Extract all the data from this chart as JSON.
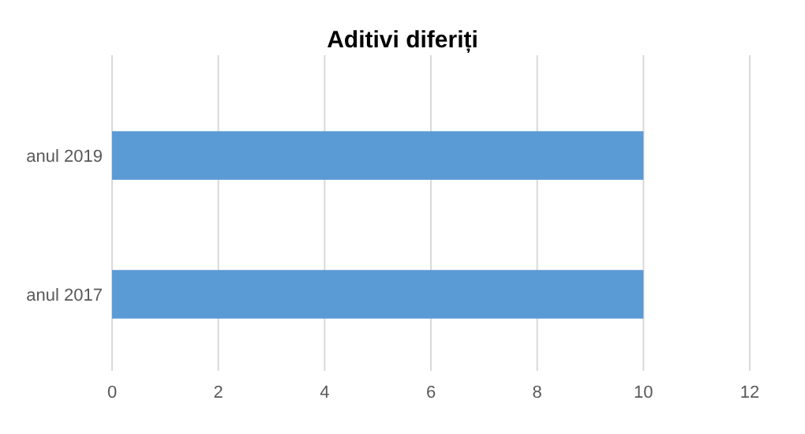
{
  "chart_data": {
    "type": "bar",
    "title": "Aditivi diferiți",
    "orientation": "horizontal",
    "categories": [
      "anul 2019",
      "anul 2017"
    ],
    "values": [
      10,
      10
    ],
    "color": "#5b9bd5",
    "xlim": [
      0,
      12
    ],
    "xticks": [
      0,
      2,
      4,
      6,
      8,
      10,
      12
    ],
    "grid": "x"
  }
}
